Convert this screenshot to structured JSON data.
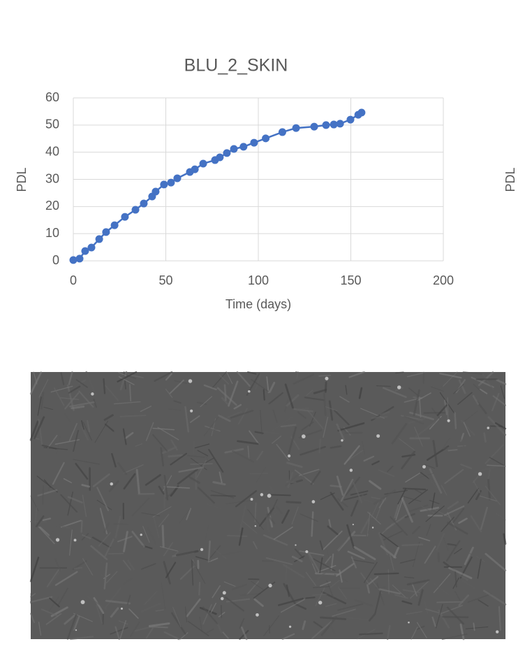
{
  "chart_data": {
    "type": "scatter-line",
    "title": "BLU_2_SKIN",
    "xlabel": "Time (days)",
    "ylabel": "PDL",
    "color": "#4472c4",
    "x": [
      0,
      3.4,
      6.4,
      9.8,
      14,
      17.7,
      22.3,
      27.9,
      33.6,
      38.1,
      42.6,
      44.5,
      49,
      52.8,
      56.2,
      63,
      65.7,
      70.2,
      76.6,
      79.2,
      83,
      86.8,
      92,
      97.7,
      104,
      113,
      120.4,
      130.2,
      136.6,
      140.8,
      144.2,
      149.8,
      154,
      155.8
    ],
    "y": [
      0.3,
      0.8,
      3.6,
      4.9,
      8,
      10.6,
      13.1,
      16.2,
      18.8,
      21.1,
      23.7,
      25.5,
      28.1,
      28.8,
      30.4,
      32.7,
      33.7,
      35.8,
      37.1,
      38.1,
      39.7,
      41.2,
      42,
      43.5,
      45.1,
      47.4,
      48.9,
      49.4,
      50,
      50.2,
      50.5,
      52,
      53.8,
      54.6
    ],
    "xlim": [
      0,
      200
    ],
    "xticks": [
      0,
      50,
      100,
      150,
      200
    ],
    "ylim": [
      0,
      60
    ],
    "yticks": [
      0,
      10,
      20,
      30,
      40,
      50,
      60
    ],
    "grid": true
  },
  "partial_chart": {
    "ylabel": "PDL"
  }
}
